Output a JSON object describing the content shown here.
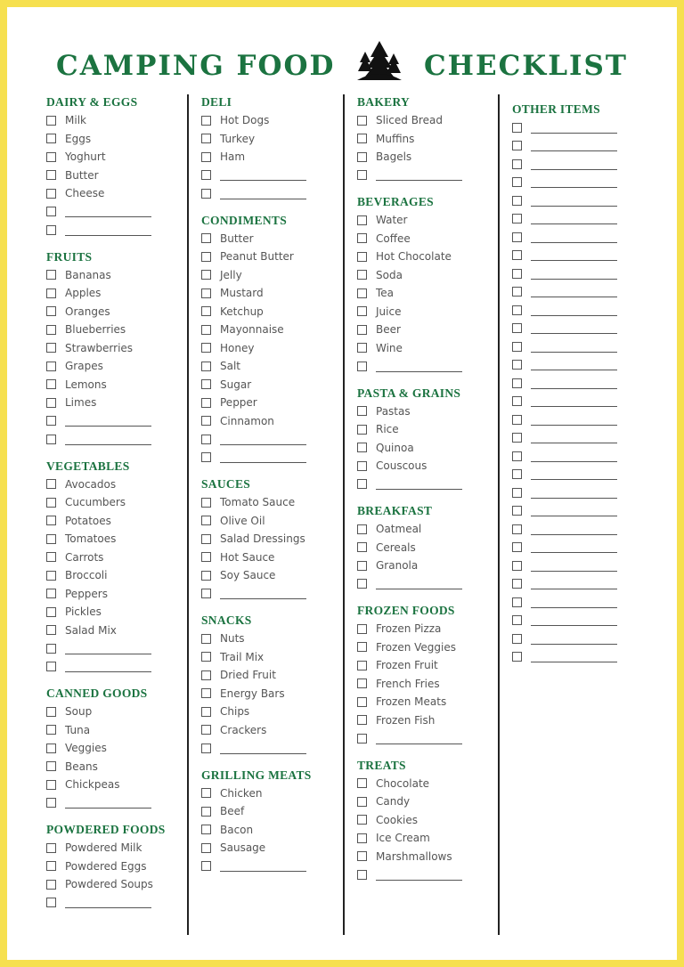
{
  "title_left": "CAMPING FOOD",
  "title_right": "CHECKLIST",
  "colors": {
    "border": "#f6e04f",
    "heading": "#1b7340"
  },
  "columns": [
    [
      {
        "title": "DAIRY & EGGS",
        "items": [
          "Milk",
          "Eggs",
          "Yoghurt",
          "Butter",
          "Cheese",
          "",
          ""
        ]
      },
      {
        "title": "FRUITS",
        "items": [
          "Bananas",
          "Apples",
          "Oranges",
          "Blueberries",
          "Strawberries",
          "Grapes",
          "Lemons",
          "Limes",
          "",
          ""
        ]
      },
      {
        "title": "VEGETABLES",
        "items": [
          "Avocados",
          "Cucumbers",
          "Potatoes",
          "Tomatoes",
          "Carrots",
          "Broccoli",
          "Peppers",
          "Pickles",
          "Salad Mix",
          "",
          ""
        ]
      },
      {
        "title": "CANNED GOODS",
        "items": [
          "Soup",
          "Tuna",
          "Veggies",
          "Beans",
          "Chickpeas",
          ""
        ]
      },
      {
        "title": "POWDERED FOODS",
        "items": [
          "Powdered Milk",
          "Powdered Eggs",
          "Powdered Soups",
          ""
        ]
      }
    ],
    [
      {
        "title": "DELI",
        "items": [
          "Hot Dogs",
          "Turkey",
          "Ham",
          "",
          ""
        ]
      },
      {
        "title": "CONDIMENTS",
        "items": [
          "Butter",
          "Peanut Butter",
          "Jelly",
          "Mustard",
          "Ketchup",
          "Mayonnaise",
          "Honey",
          "Salt",
          "Sugar",
          "Pepper",
          "Cinnamon",
          "",
          ""
        ]
      },
      {
        "title": "SAUCES",
        "items": [
          "Tomato Sauce",
          "Olive Oil",
          "Salad Dressings",
          "Hot Sauce",
          "Soy Sauce",
          ""
        ]
      },
      {
        "title": "SNACKS",
        "items": [
          "Nuts",
          "Trail Mix",
          "Dried Fruit",
          "Energy Bars",
          "Chips",
          "Crackers",
          ""
        ]
      },
      {
        "title": "GRILLING MEATS",
        "items": [
          "Chicken",
          "Beef",
          "Bacon",
          "Sausage",
          ""
        ]
      }
    ],
    [
      {
        "title": "BAKERY",
        "items": [
          "Sliced Bread",
          "Muffins",
          "Bagels",
          ""
        ]
      },
      {
        "title": "BEVERAGES",
        "items": [
          "Water",
          "Coffee",
          "Hot Chocolate",
          "Soda",
          "Tea",
          "Juice",
          "Beer",
          "Wine",
          ""
        ]
      },
      {
        "title": "PASTA & GRAINS",
        "items": [
          "Pastas",
          "Rice",
          "Quinoa",
          "Couscous",
          ""
        ]
      },
      {
        "title": "BREAKFAST",
        "items": [
          "Oatmeal",
          "Cereals",
          "Granola",
          ""
        ]
      },
      {
        "title": "FROZEN FOODS",
        "items": [
          "Frozen Pizza",
          "Frozen Veggies",
          "Frozen Fruit",
          "French Fries",
          "Frozen Meats",
          "Frozen Fish",
          ""
        ]
      },
      {
        "title": "TREATS",
        "items": [
          "Chocolate",
          "Candy",
          "Cookies",
          "Ice Cream",
          "Marshmallows",
          ""
        ]
      }
    ],
    [
      {
        "title": "OTHER ITEMS",
        "items": [
          "",
          "",
          "",
          "",
          "",
          "",
          "",
          "",
          "",
          "",
          "",
          "",
          "",
          "",
          "",
          "",
          "",
          "",
          "",
          "",
          "",
          "",
          "",
          "",
          "",
          "",
          "",
          "",
          "",
          ""
        ]
      }
    ]
  ]
}
